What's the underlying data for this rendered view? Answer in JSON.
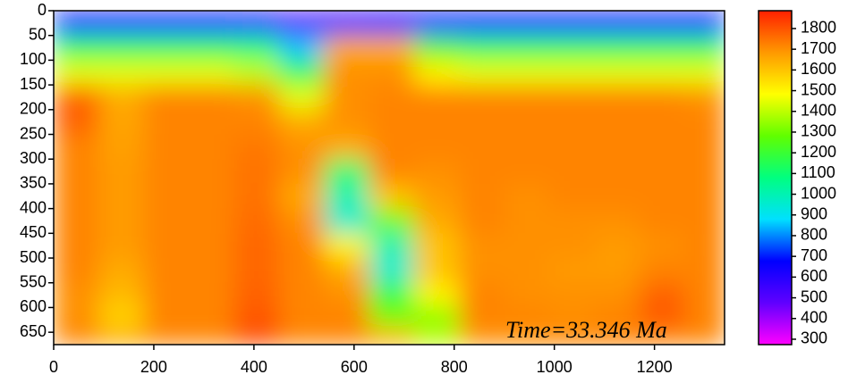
{
  "chart_data": {
    "type": "heatmap",
    "annotation": "Time=33.346 Ma",
    "x": [
      45,
      135,
      225,
      315,
      405,
      495,
      585,
      675,
      765,
      855,
      945,
      1035,
      1125,
      1215,
      1305
    ],
    "y": [
      25,
      75,
      125,
      175,
      225,
      275,
      325,
      375,
      425,
      475,
      525,
      575,
      625,
      655
    ],
    "z": [
      [
        620,
        620,
        620,
        620,
        600,
        500,
        560,
        620,
        620,
        620,
        620,
        620,
        620,
        620,
        620
      ],
      [
        1150,
        1150,
        1150,
        1150,
        1100,
        850,
        1650,
        1650,
        1250,
        1150,
        1150,
        1150,
        1150,
        1150,
        1150
      ],
      [
        1450,
        1450,
        1450,
        1450,
        1400,
        1150,
        1700,
        1700,
        1500,
        1450,
        1450,
        1450,
        1450,
        1450,
        1450
      ],
      [
        1780,
        1650,
        1720,
        1720,
        1700,
        1450,
        1700,
        1720,
        1720,
        1720,
        1720,
        1720,
        1720,
        1720,
        1700
      ],
      [
        1780,
        1660,
        1720,
        1720,
        1720,
        1650,
        1700,
        1720,
        1720,
        1720,
        1720,
        1720,
        1720,
        1720,
        1720
      ],
      [
        1720,
        1670,
        1720,
        1720,
        1740,
        1700,
        1650,
        1720,
        1720,
        1720,
        1720,
        1720,
        1720,
        1720,
        1720
      ],
      [
        1720,
        1680,
        1720,
        1720,
        1750,
        1700,
        1100,
        1720,
        1700,
        1720,
        1720,
        1720,
        1720,
        1720,
        1720
      ],
      [
        1720,
        1680,
        1720,
        1720,
        1750,
        1650,
        1000,
        1600,
        1680,
        1720,
        1700,
        1720,
        1720,
        1720,
        1720
      ],
      [
        1720,
        1680,
        1720,
        1720,
        1760,
        1700,
        950,
        1300,
        1650,
        1720,
        1700,
        1700,
        1700,
        1720,
        1720
      ],
      [
        1720,
        1680,
        1720,
        1720,
        1770,
        1720,
        1500,
        1000,
        1600,
        1700,
        1700,
        1700,
        1680,
        1700,
        1720
      ],
      [
        1720,
        1650,
        1720,
        1720,
        1770,
        1720,
        1650,
        950,
        1600,
        1700,
        1700,
        1680,
        1680,
        1720,
        1720
      ],
      [
        1700,
        1620,
        1720,
        1720,
        1780,
        1720,
        1700,
        1200,
        1500,
        1720,
        1700,
        1700,
        1700,
        1780,
        1720
      ],
      [
        1700,
        1560,
        1720,
        1720,
        1800,
        1720,
        1720,
        1300,
        1300,
        1720,
        1720,
        1700,
        1720,
        1800,
        1720
      ],
      [
        1720,
        1650,
        1720,
        1720,
        1820,
        1720,
        1720,
        1650,
        1400,
        1700,
        1700,
        1720,
        1720,
        1720,
        1720
      ]
    ],
    "xlim": [
      0,
      1340
    ],
    "xticks": [
      0,
      200,
      400,
      600,
      800,
      1000,
      1200
    ],
    "ylim": [
      675,
      0
    ],
    "yticks": [
      0,
      50,
      100,
      150,
      200,
      250,
      300,
      350,
      400,
      450,
      500,
      550,
      600,
      650
    ],
    "clim": [
      274,
      1886
    ],
    "cticks": [
      300,
      400,
      500,
      600,
      700,
      800,
      900,
      1000,
      1100,
      1200,
      1300,
      1400,
      1500,
      1600,
      1700,
      1800
    ],
    "colormap": [
      "#ff00ff",
      "#6000ff",
      "#0000ff",
      "#00e0ff",
      "#00ff80",
      "#60ff00",
      "#ffff00",
      "#ff9900",
      "#ff2000"
    ]
  }
}
